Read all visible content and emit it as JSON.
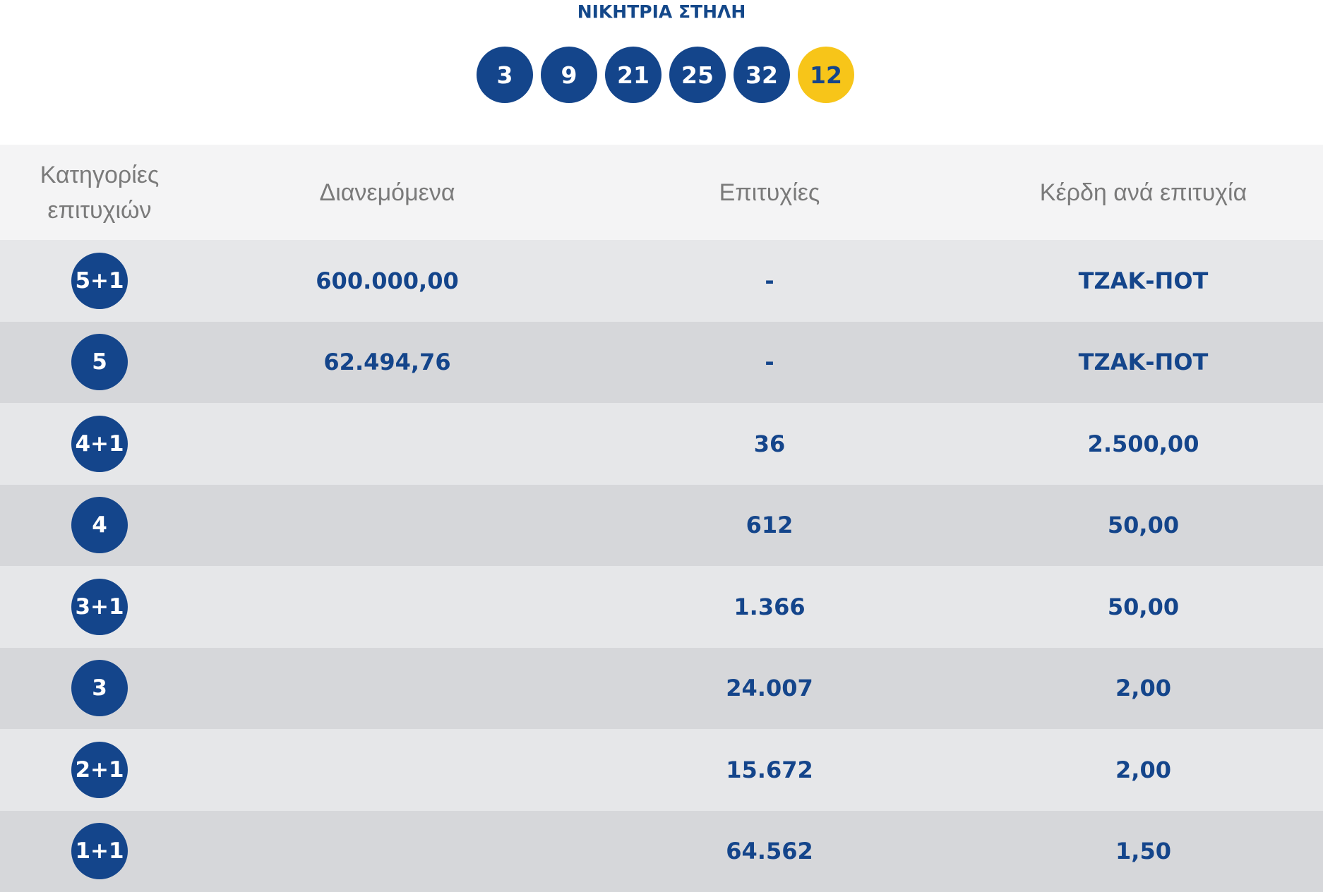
{
  "winning_column": {
    "title": "ΝΙΚΗΤΡΙΑ ΣΤΗΛΗ",
    "numbers": [
      "3",
      "9",
      "21",
      "25",
      "32"
    ],
    "bonus": "12"
  },
  "table": {
    "headers": {
      "category": "Κατηγορίες επιτυχιών",
      "distributed": "Διανεμόμενα",
      "winners": "Επιτυχίες",
      "prize_per_winner": "Κέρδη ανά επιτυχία"
    },
    "rows": [
      {
        "category": "5+1",
        "distributed": "600.000,00",
        "winners": "-",
        "prize": "ΤΖΑΚ-ΠΟΤ"
      },
      {
        "category": "5",
        "distributed": "62.494,76",
        "winners": "-",
        "prize": "ΤΖΑΚ-ΠΟΤ"
      },
      {
        "category": "4+1",
        "distributed": "",
        "winners": "36",
        "prize": "2.500,00"
      },
      {
        "category": "4",
        "distributed": "",
        "winners": "612",
        "prize": "50,00"
      },
      {
        "category": "3+1",
        "distributed": "",
        "winners": "1.366",
        "prize": "50,00"
      },
      {
        "category": "3",
        "distributed": "",
        "winners": "24.007",
        "prize": "2,00"
      },
      {
        "category": "2+1",
        "distributed": "",
        "winners": "15.672",
        "prize": "2,00"
      },
      {
        "category": "1+1",
        "distributed": "",
        "winners": "64.562",
        "prize": "1,50"
      }
    ]
  },
  "colors": {
    "ball_blue": "#14458b",
    "bonus_yellow": "#f7c519",
    "row_light": "#e6e7e9",
    "row_dark": "#d6d7da",
    "header_bg": "#f4f4f5"
  }
}
